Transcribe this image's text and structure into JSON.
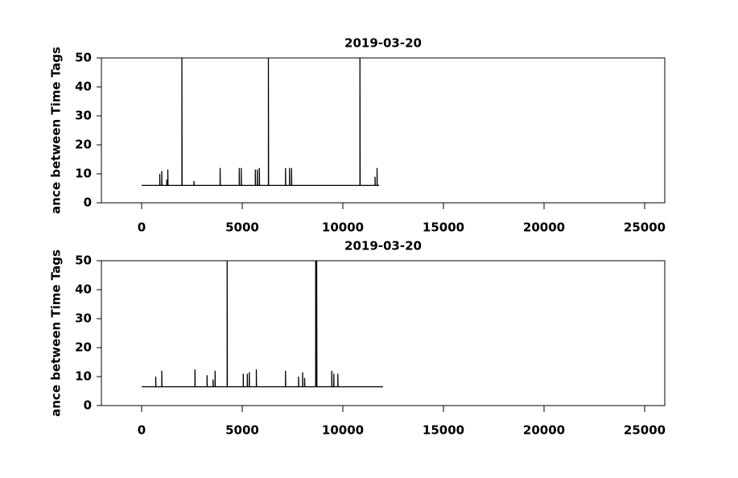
{
  "chart_data": [
    {
      "type": "line",
      "title": "2019-03-20",
      "y_label": "ance between Time Tags",
      "color": "#000000",
      "x": [
        0,
        900,
        900,
        910,
        1000,
        1000,
        1010,
        1250,
        1250,
        1260,
        1300,
        1300,
        1310,
        2000,
        2000,
        2010,
        2600,
        2600,
        2610,
        3900,
        3900,
        3910,
        4850,
        4850,
        4860,
        4950,
        4950,
        4960,
        5650,
        5650,
        5660,
        5750,
        5750,
        5760,
        5850,
        5850,
        5860,
        6300,
        6300,
        6310,
        7150,
        7150,
        7160,
        7350,
        7350,
        7360,
        7450,
        7450,
        7460,
        10850,
        10850,
        10860,
        11600,
        11600,
        11610,
        11700,
        11700,
        11710,
        11800
      ],
      "values": [
        6,
        6,
        10,
        6,
        6,
        11,
        6,
        6,
        8,
        6,
        6,
        11.5,
        6,
        6,
        50,
        6,
        6,
        7.5,
        6,
        6,
        12,
        6,
        6,
        12,
        6,
        6,
        12,
        6,
        6,
        11.5,
        6,
        6,
        11.5,
        6,
        6,
        12,
        6,
        6,
        50,
        6,
        6,
        12,
        6,
        6,
        12,
        6,
        6,
        12,
        6,
        6,
        50,
        6,
        6,
        9,
        6,
        6,
        12,
        6,
        6
      ],
      "xlim": [
        -2000,
        26000
      ],
      "ylim": [
        0,
        50
      ],
      "xticks": [
        0,
        5000,
        10000,
        15000,
        20000,
        25000
      ],
      "yticks": [
        0,
        10,
        20,
        30,
        40,
        50
      ]
    },
    {
      "type": "line",
      "title": "2019-03-20",
      "y_label": "ance between Time Tags",
      "color": "#000000",
      "x": [
        0,
        700,
        700,
        710,
        1000,
        1000,
        1010,
        2650,
        2650,
        2660,
        3250,
        3250,
        3260,
        3550,
        3550,
        3560,
        3650,
        3650,
        3660,
        4250,
        4250,
        4260,
        5050,
        5050,
        5060,
        5250,
        5250,
        5260,
        5350,
        5350,
        5360,
        5700,
        5700,
        5710,
        7150,
        7150,
        7160,
        7800,
        7800,
        7810,
        8000,
        8000,
        8010,
        8100,
        8100,
        8110,
        8650,
        8650,
        8660,
        8700,
        8700,
        8710,
        9450,
        9450,
        9460,
        9550,
        9550,
        9560,
        9750,
        9750,
        9760,
        12000
      ],
      "values": [
        6.5,
        6.5,
        10,
        6.5,
        6.5,
        12,
        6.5,
        6.5,
        12.5,
        6.5,
        6.5,
        10.5,
        6.5,
        6.5,
        9,
        6.5,
        6.5,
        12,
        6.5,
        6.5,
        50,
        6.5,
        6.5,
        11,
        6.5,
        6.5,
        11,
        6.5,
        6.5,
        11.5,
        6.5,
        6.5,
        12.5,
        6.5,
        6.5,
        12,
        6.5,
        6.5,
        10,
        6.5,
        6.5,
        11.5,
        6.5,
        6.5,
        9.5,
        6.5,
        6.5,
        50,
        6.5,
        6.5,
        50,
        6.5,
        6.5,
        12,
        6.5,
        6.5,
        11,
        6.5,
        6.5,
        11,
        6.5,
        6.5
      ],
      "xlim": [
        -2000,
        26000
      ],
      "ylim": [
        0,
        50
      ],
      "xticks": [
        0,
        5000,
        10000,
        15000,
        20000,
        25000
      ],
      "yticks": [
        0,
        10,
        20,
        30,
        40,
        50
      ]
    }
  ]
}
